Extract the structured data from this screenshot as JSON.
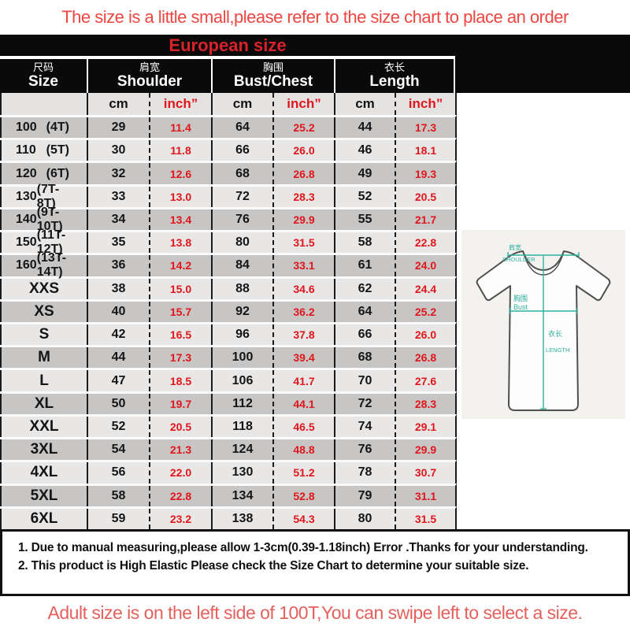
{
  "banner_top": {
    "text": "The size is a little small,please refer to the size chart to place an order"
  },
  "european_size_label": "European size",
  "table_header": {
    "groups": [
      {
        "zh": "尺码",
        "en": "Size"
      },
      {
        "zh": "肩宽",
        "en": "Shoulder"
      },
      {
        "zh": "胸围",
        "en": "Bust/Chest"
      },
      {
        "zh": "衣长",
        "en": "Length"
      }
    ],
    "unit_cm": "cm",
    "unit_inch": "inch”"
  },
  "chart_data": {
    "type": "table",
    "title": "European size",
    "columns": [
      "Size",
      "Shoulder cm",
      "Shoulder inch",
      "Bust/Chest cm",
      "Bust/Chest inch",
      "Length cm",
      "Length inch"
    ],
    "rows": [
      {
        "size": "100",
        "size_note": "(4T)",
        "values": [
          "29",
          "11.4",
          "64",
          "25.2",
          "44",
          "17.3"
        ]
      },
      {
        "size": "110",
        "size_note": "(5T)",
        "values": [
          "30",
          "11.8",
          "66",
          "26.0",
          "46",
          "18.1"
        ]
      },
      {
        "size": "120",
        "size_note": "(6T)",
        "values": [
          "32",
          "12.6",
          "68",
          "26.8",
          "49",
          "19.3"
        ]
      },
      {
        "size": "130",
        "size_note": "(7T-8T)",
        "values": [
          "33",
          "13.0",
          "72",
          "28.3",
          "52",
          "20.5"
        ]
      },
      {
        "size": "140",
        "size_note": "(9T-10T)",
        "values": [
          "34",
          "13.4",
          "76",
          "29.9",
          "55",
          "21.7"
        ]
      },
      {
        "size": "150",
        "size_note": "(11T-12T)",
        "values": [
          "35",
          "13.8",
          "80",
          "31.5",
          "58",
          "22.8"
        ]
      },
      {
        "size": "160",
        "size_note": "(13T-14T)",
        "values": [
          "36",
          "14.2",
          "84",
          "33.1",
          "61",
          "24.0"
        ]
      },
      {
        "size": "XXS",
        "size_note": "",
        "values": [
          "38",
          "15.0",
          "88",
          "34.6",
          "62",
          "24.4"
        ]
      },
      {
        "size": "XS",
        "size_note": "",
        "values": [
          "40",
          "15.7",
          "92",
          "36.2",
          "64",
          "25.2"
        ]
      },
      {
        "size": "S",
        "size_note": "",
        "values": [
          "42",
          "16.5",
          "96",
          "37.8",
          "66",
          "26.0"
        ]
      },
      {
        "size": "M",
        "size_note": "",
        "values": [
          "44",
          "17.3",
          "100",
          "39.4",
          "68",
          "26.8"
        ]
      },
      {
        "size": "L",
        "size_note": "",
        "values": [
          "47",
          "18.5",
          "106",
          "41.7",
          "70",
          "27.6"
        ]
      },
      {
        "size": "XL",
        "size_note": "",
        "values": [
          "50",
          "19.7",
          "112",
          "44.1",
          "72",
          "28.3"
        ]
      },
      {
        "size": "XXL",
        "size_note": "",
        "values": [
          "52",
          "20.5",
          "118",
          "46.5",
          "74",
          "29.1"
        ]
      },
      {
        "size": "3XL",
        "size_note": "",
        "values": [
          "54",
          "21.3",
          "124",
          "48.8",
          "76",
          "29.9"
        ]
      },
      {
        "size": "4XL",
        "size_note": "",
        "values": [
          "56",
          "22.0",
          "130",
          "51.2",
          "78",
          "30.7"
        ]
      },
      {
        "size": "5XL",
        "size_note": "",
        "values": [
          "58",
          "22.8",
          "134",
          "52.8",
          "79",
          "31.1"
        ]
      },
      {
        "size": "6XL",
        "size_note": "",
        "values": [
          "59",
          "23.2",
          "138",
          "54.3",
          "80",
          "31.5"
        ]
      }
    ]
  },
  "notes": {
    "line1": "1. Due to manual measuring,please allow 1-3cm(0.39-1.18inch) Error .Thanks for your understanding.",
    "line2": "2. This product is High Elastic Please check the Size Chart to determine your suitable size."
  },
  "banner_bottom": {
    "text": "Adult size is on the left side of 100T,You can swipe left to select a size."
  },
  "diagram": {
    "shoulder_zh": "肩宽",
    "shoulder_en": "SHOULDER",
    "bust_zh": "胸围",
    "bust_en": "Bust",
    "length_zh": "衣长",
    "length_en": "LENGTH"
  },
  "colors": {
    "banner_red": "#ee4641",
    "euro_red": "#d9222a",
    "value_red": "#e0161d",
    "header_black": "#0a0a0a",
    "row_dark": "#c8c6c5",
    "row_light": "#e9e7e6",
    "bottom_red": "#e4605d",
    "measure_teal": "#2fb0a0"
  }
}
